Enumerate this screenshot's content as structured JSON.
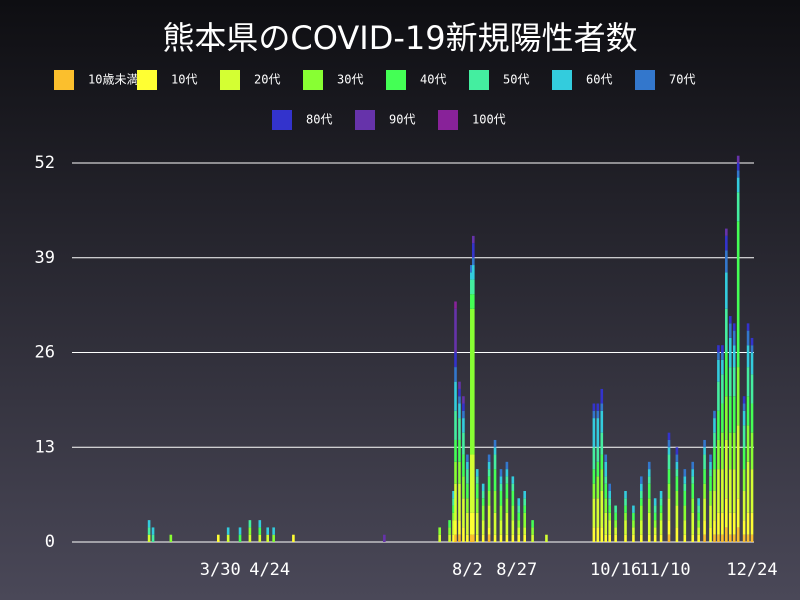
{
  "chart_data": {
    "type": "stacked_bar",
    "title": "熊本県のCOVID-19新規陽性者数",
    "x": [
      53,
      55,
      64,
      88,
      93,
      99,
      104,
      109,
      113,
      116,
      126,
      172,
      200,
      205,
      207,
      208,
      210,
      212,
      214,
      216,
      217,
      219,
      222,
      225,
      228,
      231,
      234,
      237,
      240,
      243,
      247,
      254,
      278,
      280,
      282,
      284,
      286,
      289,
      294,
      298,
      302,
      306,
      309,
      312,
      316,
      320,
      324,
      328,
      331,
      334,
      337,
      339,
      341,
      343,
      345,
      347,
      349,
      351,
      354,
      356,
      358
    ],
    "xlim": [
      14,
      359
    ],
    "xticks": [
      {
        "value": 89,
        "label": "3/30"
      },
      {
        "value": 114,
        "label": "4/24"
      },
      {
        "value": 214,
        "label": "8/2"
      },
      {
        "value": 239,
        "label": "8/27"
      },
      {
        "value": 289,
        "label": "10/16"
      },
      {
        "value": 314,
        "label": "11/10"
      },
      {
        "value": 358,
        "label": "12/24"
      }
    ],
    "ylim": [
      0,
      52
    ],
    "yticks": [
      0,
      13,
      26,
      39,
      52
    ],
    "grid": true,
    "series": [
      {
        "name": "10歳未満",
        "color": "#fbbf2d",
        "values": [
          0,
          0,
          0,
          0,
          0,
          0,
          0,
          0,
          0,
          0,
          0,
          0,
          0,
          0,
          0,
          1,
          1,
          0,
          0,
          1,
          1,
          0,
          0,
          1,
          0,
          0,
          0,
          0,
          0,
          0,
          0,
          0,
          0,
          0,
          0,
          0,
          0,
          0,
          0,
          0,
          0,
          0,
          0,
          0,
          1,
          0,
          0,
          0,
          0,
          1,
          0,
          1,
          1,
          1,
          2,
          1,
          1,
          2,
          1,
          1,
          1
        ]
      },
      {
        "name": "10代",
        "color": "#ffff33",
        "values": [
          0,
          0,
          0,
          1,
          0,
          0,
          0,
          0,
          0,
          0,
          1,
          0,
          0,
          0,
          1,
          2,
          2,
          2,
          1,
          3,
          3,
          1,
          1,
          1,
          1,
          1,
          1,
          1,
          1,
          1,
          0,
          0,
          2,
          2,
          2,
          1,
          1,
          1,
          1,
          1,
          1,
          1,
          1,
          1,
          2,
          2,
          1,
          1,
          1,
          2,
          2,
          2,
          3,
          3,
          4,
          3,
          3,
          4,
          2,
          3,
          3
        ]
      },
      {
        "name": "20代",
        "color": "#d4ff33",
        "values": [
          1,
          0,
          0,
          0,
          1,
          0,
          1,
          1,
          1,
          0,
          0,
          0,
          1,
          1,
          2,
          5,
          5,
          4,
          3,
          8,
          8,
          3,
          2,
          3,
          3,
          2,
          3,
          2,
          1,
          1,
          1,
          1,
          4,
          4,
          5,
          3,
          2,
          1,
          2,
          1,
          2,
          3,
          1,
          2,
          3,
          3,
          2,
          3,
          1,
          3,
          3,
          4,
          6,
          6,
          8,
          6,
          6,
          10,
          4,
          7,
          6
        ]
      },
      {
        "name": "30代",
        "color": "#88ff33",
        "values": [
          0,
          0,
          1,
          0,
          0,
          0,
          1,
          0,
          0,
          1,
          0,
          0,
          1,
          1,
          1,
          3,
          3,
          3,
          2,
          20,
          20,
          2,
          2,
          2,
          3,
          2,
          2,
          2,
          1,
          2,
          1,
          0,
          2,
          3,
          3,
          2,
          1,
          1,
          1,
          1,
          2,
          2,
          1,
          1,
          2,
          2,
          2,
          2,
          1,
          2,
          2,
          3,
          4,
          5,
          6,
          5,
          5,
          8,
          3,
          5,
          5
        ]
      },
      {
        "name": "40代",
        "color": "#44ff55",
        "values": [
          0,
          0,
          0,
          0,
          0,
          1,
          0,
          1,
          0,
          0,
          0,
          0,
          0,
          1,
          1,
          3,
          3,
          3,
          2,
          2,
          2,
          2,
          1,
          2,
          3,
          2,
          2,
          2,
          1,
          1,
          1,
          0,
          2,
          2,
          2,
          2,
          1,
          1,
          1,
          1,
          1,
          2,
          1,
          1,
          2,
          2,
          2,
          2,
          1,
          2,
          2,
          3,
          4,
          4,
          6,
          5,
          5,
          20,
          3,
          4,
          4
        ]
      },
      {
        "name": "50代",
        "color": "#44eea0",
        "values": [
          1,
          1,
          0,
          0,
          0,
          0,
          1,
          0,
          0,
          0,
          0,
          0,
          0,
          0,
          1,
          4,
          3,
          3,
          2,
          2,
          2,
          1,
          1,
          1,
          2,
          1,
          1,
          1,
          1,
          1,
          0,
          0,
          3,
          2,
          3,
          1,
          1,
          1,
          1,
          0,
          1,
          1,
          1,
          1,
          2,
          1,
          1,
          1,
          1,
          2,
          1,
          2,
          4,
          4,
          6,
          4,
          4,
          4,
          3,
          4,
          4
        ]
      },
      {
        "name": "60代",
        "color": "#33ccdd",
        "values": [
          1,
          1,
          0,
          0,
          1,
          1,
          0,
          1,
          1,
          1,
          0,
          0,
          0,
          0,
          1,
          4,
          2,
          2,
          1,
          1,
          2,
          1,
          1,
          1,
          1,
          1,
          1,
          1,
          1,
          1,
          0,
          0,
          4,
          4,
          3,
          2,
          1,
          0,
          1,
          1,
          1,
          1,
          1,
          1,
          1,
          1,
          1,
          1,
          1,
          1,
          1,
          2,
          3,
          2,
          5,
          4,
          3,
          2,
          2,
          3,
          3
        ]
      },
      {
        "name": "70代",
        "color": "#3377cc",
        "values": [
          0,
          0,
          0,
          0,
          0,
          0,
          0,
          0,
          0,
          0,
          0,
          0,
          0,
          0,
          0,
          2,
          1,
          1,
          1,
          1,
          1,
          0,
          0,
          1,
          1,
          1,
          1,
          0,
          0,
          0,
          0,
          0,
          1,
          1,
          1,
          1,
          1,
          0,
          0,
          0,
          1,
          1,
          0,
          0,
          1,
          1,
          1,
          1,
          0,
          1,
          1,
          1,
          1,
          1,
          3,
          2,
          2,
          1,
          1,
          2,
          1
        ]
      },
      {
        "name": "80代",
        "color": "#3333cc",
        "values": [
          0,
          0,
          0,
          0,
          0,
          0,
          0,
          0,
          0,
          0,
          0,
          0,
          0,
          0,
          0,
          2,
          1,
          1,
          0,
          0,
          2,
          0,
          0,
          0,
          0,
          0,
          0,
          0,
          0,
          0,
          0,
          0,
          1,
          1,
          2,
          0,
          0,
          0,
          0,
          0,
          0,
          0,
          0,
          0,
          1,
          1,
          0,
          0,
          0,
          0,
          0,
          0,
          1,
          1,
          2,
          1,
          1,
          1,
          1,
          1,
          1
        ]
      },
      {
        "name": "90代",
        "color": "#6633aa",
        "values": [
          0,
          0,
          0,
          0,
          0,
          0,
          0,
          0,
          0,
          0,
          0,
          1,
          0,
          0,
          0,
          6,
          1,
          1,
          0,
          0,
          1,
          0,
          0,
          0,
          0,
          0,
          0,
          0,
          0,
          0,
          0,
          0,
          0,
          0,
          0,
          0,
          0,
          0,
          0,
          0,
          0,
          0,
          0,
          0,
          0,
          0,
          0,
          0,
          0,
          0,
          0,
          0,
          0,
          0,
          1,
          0,
          0,
          1,
          0,
          0,
          0
        ]
      },
      {
        "name": "100代",
        "color": "#882299",
        "values": [
          0,
          0,
          0,
          0,
          0,
          0,
          0,
          0,
          0,
          0,
          0,
          0,
          0,
          0,
          0,
          1,
          0,
          0,
          0,
          0,
          0,
          0,
          0,
          0,
          0,
          0,
          0,
          0,
          0,
          0,
          0,
          0,
          0,
          0,
          0,
          0,
          0,
          0,
          0,
          0,
          0,
          0,
          0,
          0,
          0,
          0,
          0,
          0,
          0,
          0,
          0,
          0,
          0,
          0,
          0,
          0,
          0,
          0,
          0,
          0,
          0
        ]
      }
    ]
  }
}
